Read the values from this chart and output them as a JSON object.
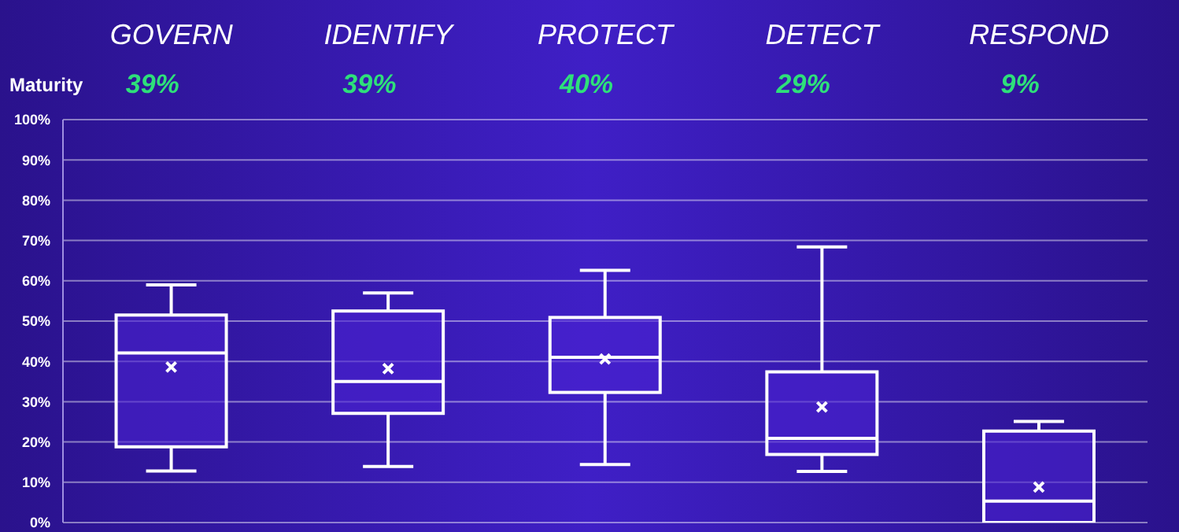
{
  "chart_data": {
    "type": "box",
    "categories": [
      "GOVERN",
      "IDENTIFY",
      "PROTECT",
      "DETECT",
      "RESPOND"
    ],
    "boxes": [
      {
        "low": 12.8,
        "q1": 18.8,
        "median": 42.1,
        "q3": 51.5,
        "high": 59,
        "mean": 38.6
      },
      {
        "low": 13.9,
        "q1": 27.1,
        "median": 35,
        "q3": 52.5,
        "high": 57,
        "mean": 38.2
      },
      {
        "low": 14.4,
        "q1": 32.3,
        "median": 41,
        "q3": 50.9,
        "high": 62.6,
        "mean": 40.6
      },
      {
        "low": 12.7,
        "q1": 16.9,
        "median": 20.9,
        "q3": 37.4,
        "high": 68.4,
        "mean": 28.7
      },
      {
        "low": 0,
        "q1": 0,
        "median": 5.3,
        "q3": 22.7,
        "high": 25.1,
        "mean": 8.8
      }
    ],
    "value_labels": [
      "39%",
      "39%",
      "40%",
      "29%",
      "9%"
    ],
    "annotations": [
      "Maturity"
    ],
    "ylim": [
      0,
      100
    ],
    "yticks": [
      {
        "value": 0,
        "label": "0%"
      },
      {
        "value": 10,
        "label": "10%"
      },
      {
        "value": 20,
        "label": "20%"
      },
      {
        "value": 30,
        "label": "30%"
      },
      {
        "value": 40,
        "label": "40%"
      },
      {
        "value": 50,
        "label": "50%"
      },
      {
        "value": 60,
        "label": "60%"
      },
      {
        "value": 70,
        "label": "70%"
      },
      {
        "value": 80,
        "label": "80%"
      },
      {
        "value": 90,
        "label": "90%"
      },
      {
        "value": 100,
        "label": "100%"
      }
    ],
    "grid": "y",
    "color": "#ffffff",
    "marker": "cross"
  }
}
